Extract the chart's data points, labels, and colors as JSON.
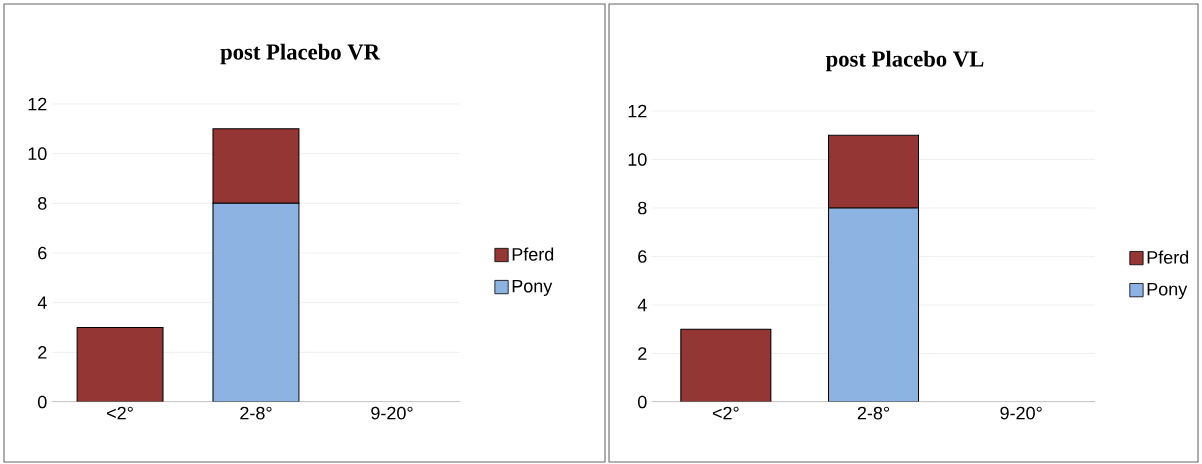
{
  "chart_data": [
    {
      "type": "bar",
      "title": "post Placebo VR",
      "categories": [
        "<2°",
        "2-8°",
        "9-20°"
      ],
      "stacked": true,
      "grid": "y",
      "legend": "right",
      "ylim": [
        0,
        12
      ],
      "yticks": [
        0,
        2,
        4,
        6,
        8,
        10,
        12
      ],
      "series": [
        {
          "name": "Pony",
          "color": "#8db3e2",
          "values": [
            0,
            8,
            0
          ]
        },
        {
          "name": "Pferd",
          "color": "#943634",
          "values": [
            3,
            3,
            0
          ]
        }
      ]
    },
    {
      "type": "bar",
      "title": "post Placebo VL",
      "categories": [
        "<2°",
        "2-8°",
        "9-20°"
      ],
      "stacked": true,
      "grid": "y",
      "legend": "right",
      "ylim": [
        0,
        12
      ],
      "yticks": [
        0,
        2,
        4,
        6,
        8,
        10,
        12
      ],
      "series": [
        {
          "name": "Pony",
          "color": "#8db3e2",
          "values": [
            0,
            8,
            0
          ]
        },
        {
          "name": "Pferd",
          "color": "#943634",
          "values": [
            3,
            3,
            0
          ]
        }
      ]
    }
  ]
}
